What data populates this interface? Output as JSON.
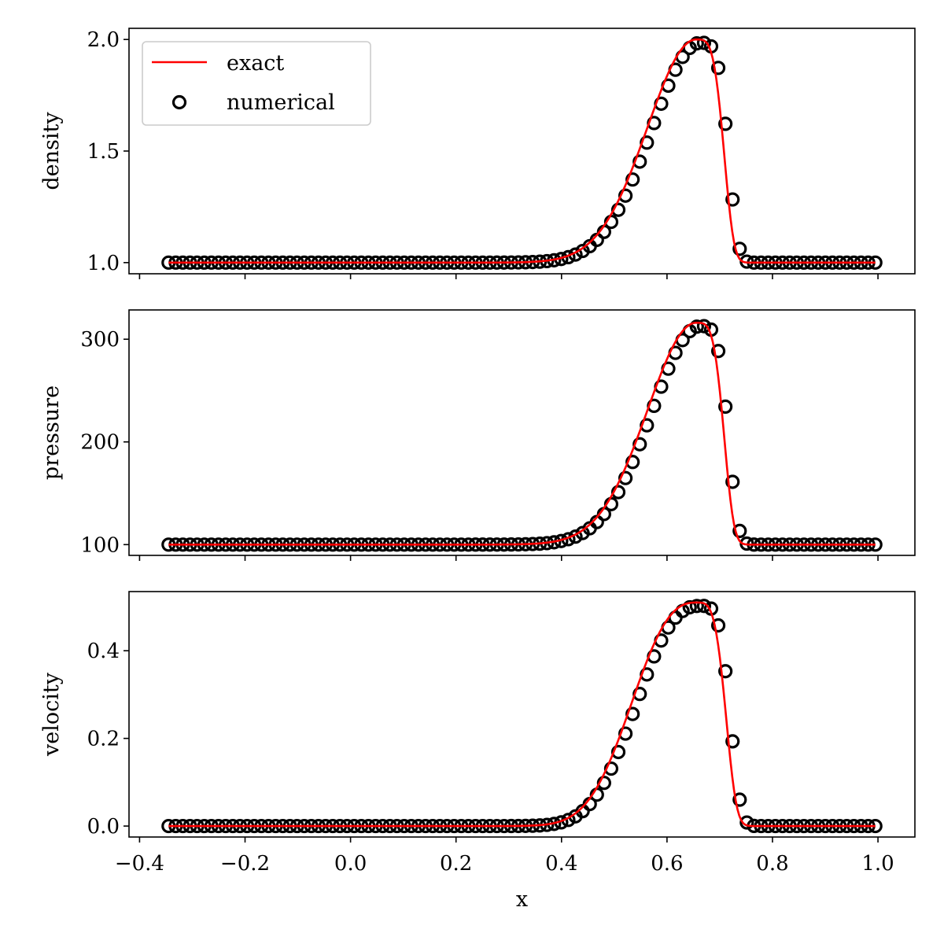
{
  "chart_data": {
    "type": "line",
    "xlabel": "x",
    "xlim": [
      -0.42,
      1.07
    ],
    "x_ticks": [
      -0.4,
      -0.2,
      0.0,
      0.2,
      0.4,
      0.6,
      0.8,
      1.0
    ],
    "x_tick_labels": [
      "−0.4",
      "−0.2",
      "0.0",
      "0.2",
      "0.4",
      "0.6",
      "0.8",
      "1.0"
    ],
    "legend": {
      "location": "upper-left",
      "entries": [
        {
          "label": "exact",
          "style": "line",
          "color": "#ff0000"
        },
        {
          "label": "numerical",
          "style": "open-circle",
          "color": "#000000"
        }
      ]
    },
    "sample_x_range": [
      -0.345,
      0.995
    ],
    "sample_count": 100,
    "panels": [
      {
        "ylabel": "density",
        "ylim": [
          0.95,
          2.05
        ],
        "y_ticks": [
          1.0,
          1.5,
          2.0
        ],
        "y_tick_labels": [
          "1.0",
          "1.5",
          "2.0"
        ],
        "profile": {
          "baseline": 1.0,
          "amplitude": 1.0,
          "peak_x": 0.655,
          "left_width": 0.13,
          "right_width": 0.058,
          "left_exponent": 2,
          "right_exponent": 4
        },
        "series": [
          {
            "name": "exact",
            "color": "#ff0000"
          },
          {
            "name": "numerical",
            "color": "#000000",
            "shift": 0.008,
            "scale": 0.985
          }
        ]
      },
      {
        "ylabel": "pressure",
        "ylim": [
          89.5,
          328.5
        ],
        "y_ticks": [
          100,
          200,
          300
        ],
        "y_tick_labels": [
          "100",
          "200",
          "300"
        ],
        "profile": {
          "baseline": 100,
          "amplitude": 216,
          "peak_x": 0.655,
          "left_width": 0.13,
          "right_width": 0.058,
          "left_exponent": 2,
          "right_exponent": 4
        },
        "series": [
          {
            "name": "exact",
            "color": "#ff0000"
          },
          {
            "name": "numerical",
            "color": "#000000",
            "shift": 0.008,
            "scale": 0.985
          }
        ]
      },
      {
        "ylabel": "velocity",
        "ylim": [
          -0.025,
          0.535
        ],
        "y_ticks": [
          0.0,
          0.2,
          0.4
        ],
        "y_tick_labels": [
          "0.0",
          "0.2",
          "0.4"
        ],
        "profile": {
          "baseline": 0.0,
          "amplitude": 0.51,
          "peak_x": 0.655,
          "left_width": 0.15,
          "right_width": 0.062,
          "left_exponent": 2.5,
          "right_exponent": 4
        },
        "series": [
          {
            "name": "exact",
            "color": "#ff0000"
          },
          {
            "name": "numerical",
            "color": "#000000",
            "shift": 0.008,
            "scale": 0.985
          }
        ]
      }
    ]
  }
}
